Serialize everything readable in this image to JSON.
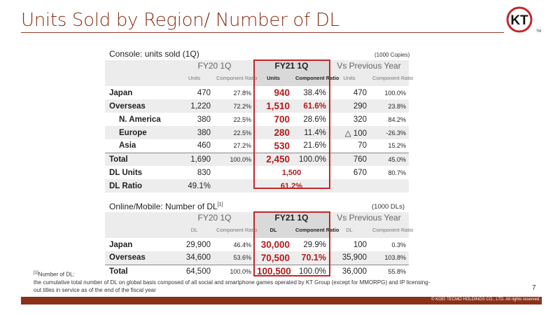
{
  "page": {
    "title": "Units Sold by Region/ Number of DL",
    "page_number": "7"
  },
  "logo": {
    "text": "KT",
    "mark": "TM"
  },
  "console": {
    "caption": "Console: units sold (1Q)",
    "unit_note": "(1000 Copies)",
    "groups": [
      "FY20 1Q",
      "FY21 1Q",
      "Vs Previous Year"
    ],
    "subheaders": [
      "Units",
      "Component Ratio",
      "Units",
      "Component Ratio",
      "Units",
      "Component Ratio"
    ],
    "rows": [
      {
        "label": "Japan",
        "fy20_units": "470",
        "fy20_ratio": "27.8%",
        "fy21_units": "940",
        "fy21_ratio": "38.4%",
        "vs_units": "470",
        "vs_ratio": "100.0%"
      },
      {
        "label": "Overseas",
        "fy20_units": "1,220",
        "fy20_ratio": "72.2%",
        "fy21_units": "1,510",
        "fy21_ratio": "61.6%",
        "vs_units": "290",
        "vs_ratio": "23.8%"
      },
      {
        "label": "N. America",
        "fy20_units": "380",
        "fy20_ratio": "22.5%",
        "fy21_units": "700",
        "fy21_ratio": "28.6%",
        "vs_units": "320",
        "vs_ratio": "84.2%"
      },
      {
        "label": "Europe",
        "fy20_units": "380",
        "fy20_ratio": "22.5%",
        "fy21_units": "280",
        "fy21_ratio": "11.4%",
        "vs_units": "△ 100",
        "vs_ratio": "-26.3%"
      },
      {
        "label": "Asia",
        "fy20_units": "460",
        "fy20_ratio": "27.2%",
        "fy21_units": "530",
        "fy21_ratio": "21.6%",
        "vs_units": "70",
        "vs_ratio": "15.2%"
      },
      {
        "label": "Total",
        "fy20_units": "1,690",
        "fy20_ratio": "100.0%",
        "fy21_units": "2,450",
        "fy21_ratio": "100.0%",
        "vs_units": "760",
        "vs_ratio": "45.0%"
      }
    ],
    "dl_units": {
      "label": "DL Units",
      "fy20": "830",
      "fy21": "1,500",
      "vs_units": "670",
      "vs_ratio": "80.7%"
    },
    "dl_ratio": {
      "label": "DL Ratio",
      "fy20": "49.1%",
      "fy21": "61.2%"
    }
  },
  "online": {
    "caption": "Online/Mobile: Number of DL",
    "caption_sup": "[1]",
    "unit_note": "(1000 DLs)",
    "groups": [
      "FY20 1Q",
      "FY21 1Q",
      "Vs Previous Year"
    ],
    "subheaders": [
      "DL",
      "Component Ratio",
      "DL",
      "Component Ratio",
      "DL",
      "Component Ratio"
    ],
    "rows": [
      {
        "label": "Japan",
        "fy20_units": "29,900",
        "fy20_ratio": "46.4%",
        "fy21_units": "30,000",
        "fy21_ratio": "29.9%",
        "vs_units": "100",
        "vs_ratio": "0.3%"
      },
      {
        "label": "Overseas",
        "fy20_units": "34,600",
        "fy20_ratio": "53.6%",
        "fy21_units": "70,500",
        "fy21_ratio": "70.1%",
        "vs_units": "35,900",
        "vs_ratio": "103.8%"
      },
      {
        "label": "Total",
        "fy20_units": "64,500",
        "fy20_ratio": "100.0%",
        "fy21_units": "100,500",
        "fy21_ratio": "100.0%",
        "vs_units": "36,000",
        "vs_ratio": "55.8%"
      }
    ]
  },
  "footnote": {
    "marker": "[1]",
    "line1": "Number of DL:",
    "line2": "the cumulative total number of DL on global basis composed of all social and smartphone games operated by KT Group (except for MMORPG) and IP licensing-",
    "line3": "out titles in service as of the end of the fiscal year"
  },
  "footer": {
    "copyright": "© KOEI TECMO HOLDINGS CO., LTD. All rights reserved."
  },
  "colors": {
    "accent": "#8b3118",
    "highlight": "#c0282b",
    "value_red": "#b31b1b",
    "header_bg": "#ececec"
  }
}
